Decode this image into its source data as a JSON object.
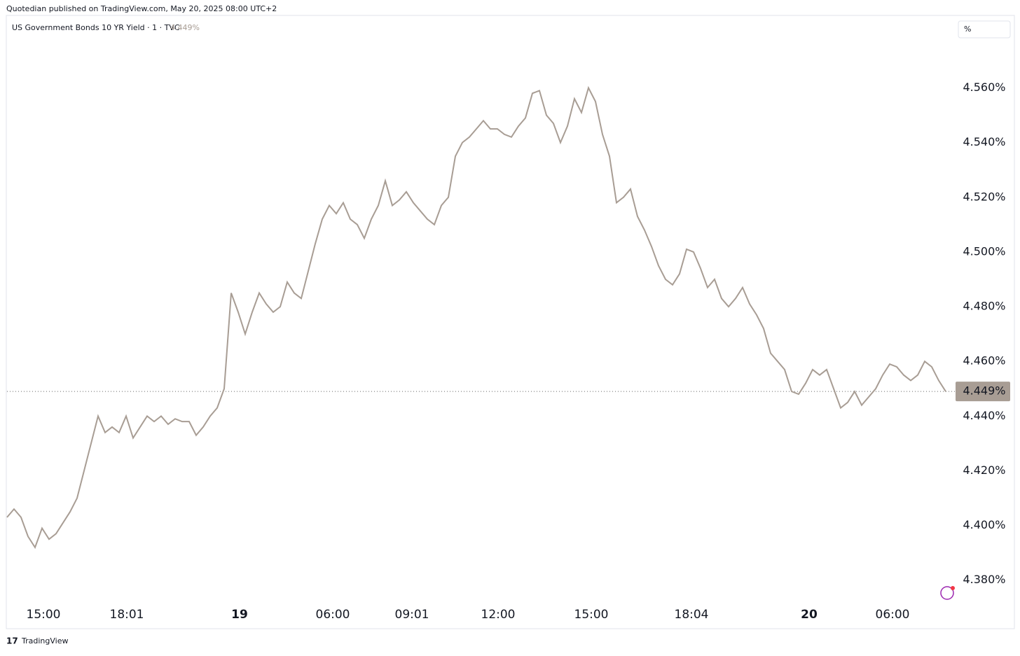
{
  "header": {
    "publisher": "Quotedian published on TradingView.com, May 20, 2025 08:00 UTC+2",
    "symbol": "US Government Bonds 10 YR Yield · 1 · TVC",
    "unit_button": "%"
  },
  "footer": {
    "brand": "TradingView"
  },
  "chart_data": {
    "type": "line",
    "color": "#a89d94",
    "last_value": 4.449,
    "last_label": "4.449%",
    "xlim": [
      0,
      135
    ],
    "ylim": [
      4.372,
      4.587
    ],
    "xticks": [
      {
        "value": 5.2,
        "label": "15:00"
      },
      {
        "value": 17.1,
        "label": "18:01"
      },
      {
        "value": 33.2,
        "label": "19"
      },
      {
        "value": 46.5,
        "label": "06:00"
      },
      {
        "value": 57.8,
        "label": "09:01"
      },
      {
        "value": 70.1,
        "label": "12:00"
      },
      {
        "value": 83.4,
        "label": "15:00"
      },
      {
        "value": 97.7,
        "label": "18:04"
      },
      {
        "value": 114.5,
        "label": "20"
      },
      {
        "value": 126.4,
        "label": "06:00"
      }
    ],
    "yticks": [
      {
        "value": 4.38,
        "label": "4.380%"
      },
      {
        "value": 4.4,
        "label": "4.400%"
      },
      {
        "value": 4.42,
        "label": "4.420%"
      },
      {
        "value": 4.44,
        "label": "4.440%"
      },
      {
        "value": 4.46,
        "label": "4.460%"
      },
      {
        "value": 4.48,
        "label": "4.480%"
      },
      {
        "value": 4.5,
        "label": "4.500%"
      },
      {
        "value": 4.52,
        "label": "4.520%"
      },
      {
        "value": 4.54,
        "label": "4.540%"
      },
      {
        "value": 4.56,
        "label": "4.560%"
      }
    ],
    "x": [
      0,
      1,
      2,
      3,
      4,
      5,
      6,
      7,
      8,
      9,
      10,
      11,
      12,
      13,
      14,
      15,
      16,
      17,
      18,
      19,
      20,
      21,
      22,
      23,
      24,
      25,
      26,
      27,
      28,
      29,
      30,
      31,
      32,
      33,
      34,
      35,
      36,
      37,
      38,
      39,
      40,
      41,
      42,
      43,
      44,
      45,
      46,
      47,
      48,
      49,
      50,
      51,
      52,
      53,
      54,
      55,
      56,
      57,
      58,
      59,
      60,
      61,
      62,
      63,
      64,
      65,
      66,
      67,
      68,
      69,
      70,
      71,
      72,
      73,
      74,
      75,
      76,
      77,
      78,
      79,
      80,
      81,
      82,
      83,
      84,
      85,
      86,
      87,
      88,
      89,
      90,
      91,
      92,
      93,
      94,
      95,
      96,
      97,
      98,
      99,
      100,
      101,
      102,
      103,
      104,
      105,
      106,
      107,
      108,
      109,
      110,
      111,
      112,
      113,
      114,
      115,
      116,
      117,
      118,
      119,
      120,
      121,
      122,
      123,
      124,
      125,
      126,
      127,
      128,
      129,
      130,
      131,
      132,
      133,
      134
    ],
    "values": [
      4.403,
      4.406,
      4.403,
      4.396,
      4.392,
      4.399,
      4.395,
      4.397,
      4.401,
      4.405,
      4.41,
      4.42,
      4.43,
      4.44,
      4.434,
      4.436,
      4.434,
      4.44,
      4.432,
      4.436,
      4.44,
      4.438,
      4.44,
      4.437,
      4.439,
      4.438,
      4.438,
      4.433,
      4.436,
      4.44,
      4.443,
      4.45,
      4.485,
      4.478,
      4.47,
      4.478,
      4.485,
      4.481,
      4.478,
      4.48,
      4.489,
      4.485,
      4.483,
      4.493,
      4.503,
      4.512,
      4.517,
      4.514,
      4.518,
      4.512,
      4.51,
      4.505,
      4.512,
      4.517,
      4.526,
      4.517,
      4.519,
      4.522,
      4.518,
      4.515,
      4.512,
      4.51,
      4.517,
      4.52,
      4.535,
      4.54,
      4.542,
      4.545,
      4.548,
      4.545,
      4.545,
      4.543,
      4.542,
      4.546,
      4.549,
      4.558,
      4.559,
      4.55,
      4.547,
      4.54,
      4.546,
      4.556,
      4.551,
      4.56,
      4.555,
      4.543,
      4.535,
      4.518,
      4.52,
      4.523,
      4.513,
      4.508,
      4.502,
      4.495,
      4.49,
      4.488,
      4.492,
      4.501,
      4.5,
      4.494,
      4.487,
      4.49,
      4.483,
      4.48,
      4.483,
      4.487,
      4.481,
      4.477,
      4.472,
      4.463,
      4.46,
      4.457,
      4.449,
      4.448,
      4.452,
      4.457,
      4.455,
      4.457,
      4.45,
      4.443,
      4.445,
      4.449,
      4.444,
      4.447,
      4.45,
      4.455,
      4.459,
      4.458,
      4.455,
      4.453,
      4.455,
      4.46,
      4.458,
      4.453,
      4.449
    ]
  }
}
